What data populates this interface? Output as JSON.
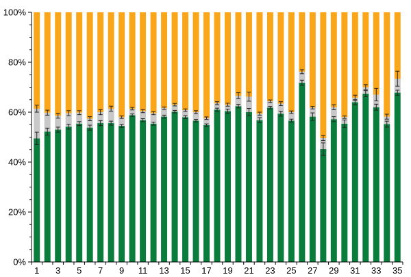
{
  "chart_data": {
    "type": "bar",
    "stacked": true,
    "percent_stacked": true,
    "categories": [
      "1",
      "2",
      "3",
      "4",
      "5",
      "6",
      "7",
      "8",
      "9",
      "10",
      "11",
      "12",
      "13",
      "14",
      "15",
      "16",
      "17",
      "18",
      "19",
      "20",
      "21",
      "22",
      "23",
      "24",
      "25",
      "26",
      "27",
      "28",
      "29",
      "30",
      "31",
      "32",
      "33",
      "34",
      "35"
    ],
    "x_tick_labels": [
      "1",
      "3",
      "5",
      "7",
      "9",
      "11",
      "13",
      "15",
      "17",
      "19",
      "21",
      "23",
      "25",
      "27",
      "29",
      "31",
      "33",
      "35"
    ],
    "y_ticks": [
      "0%",
      "20%",
      "40%",
      "60%",
      "80%",
      "100%"
    ],
    "ylim": [
      0,
      100
    ],
    "grid": false,
    "legend": "none",
    "series": [
      {
        "color": "#0a7d3c",
        "values": [
          49.5,
          52.2,
          53.0,
          54.2,
          55.4,
          53.8,
          55.6,
          55.6,
          54.5,
          58.8,
          56.8,
          55.4,
          58.2,
          60.2,
          58.0,
          56.6,
          54.8,
          61.0,
          60.4,
          62.4,
          60.0,
          56.8,
          61.8,
          59.4,
          56.6,
          71.8,
          58.2,
          45.2,
          57.2,
          55.4,
          64.0,
          67.4,
          62.0,
          55.2,
          67.8
        ],
        "error": [
          2.5,
          1.4,
          1.0,
          1.0,
          0.8,
          1.0,
          1.0,
          0.8,
          0.6,
          0.5,
          0.6,
          0.6,
          0.6,
          0.5,
          0.6,
          0.5,
          0.5,
          0.6,
          0.8,
          0.7,
          1.5,
          1.0,
          0.5,
          1.0,
          0.6,
          1.0,
          1.5,
          2.5,
          1.0,
          1.5,
          1.0,
          1.2,
          1.2,
          1.2,
          1.0
        ]
      },
      {
        "color": "#c8c8c8",
        "values": [
          11.9,
          7.6,
          5.6,
          5.4,
          4.4,
          3.6,
          4.4,
          5.8,
          3.5,
          2.6,
          3.6,
          4.2,
          3.4,
          2.8,
          2.8,
          3.4,
          2.8,
          2.6,
          2.6,
          4.2,
          6.2,
          2.6,
          2.6,
          4.0,
          3.4,
          4.4,
          3.6,
          4.4,
          4.8,
          2.6,
          1.8,
          2.6,
          5.0,
          3.0,
          5.6
        ],
        "error": [
          1.4,
          1.0,
          1.0,
          1.0,
          0.8,
          0.8,
          1.0,
          1.0,
          0.5,
          0.5,
          0.6,
          0.6,
          0.5,
          0.5,
          0.5,
          0.6,
          0.5,
          0.6,
          0.6,
          1.2,
          1.8,
          0.6,
          0.5,
          0.8,
          0.5,
          0.8,
          0.5,
          1.0,
          1.0,
          0.5,
          1.0,
          1.0,
          2.5,
          1.0,
          3.0
        ]
      },
      {
        "color": "#faa61a",
        "values": [
          38.6,
          40.2,
          41.4,
          40.4,
          40.2,
          42.6,
          40.0,
          38.6,
          42.0,
          38.6,
          39.6,
          40.4,
          38.4,
          37.0,
          39.2,
          40.0,
          42.4,
          36.4,
          37.0,
          33.4,
          33.8,
          40.6,
          35.6,
          36.6,
          40.0,
          23.8,
          38.2,
          50.4,
          38.0,
          42.0,
          34.2,
          30.0,
          33.0,
          41.8,
          26.6
        ]
      }
    ]
  }
}
